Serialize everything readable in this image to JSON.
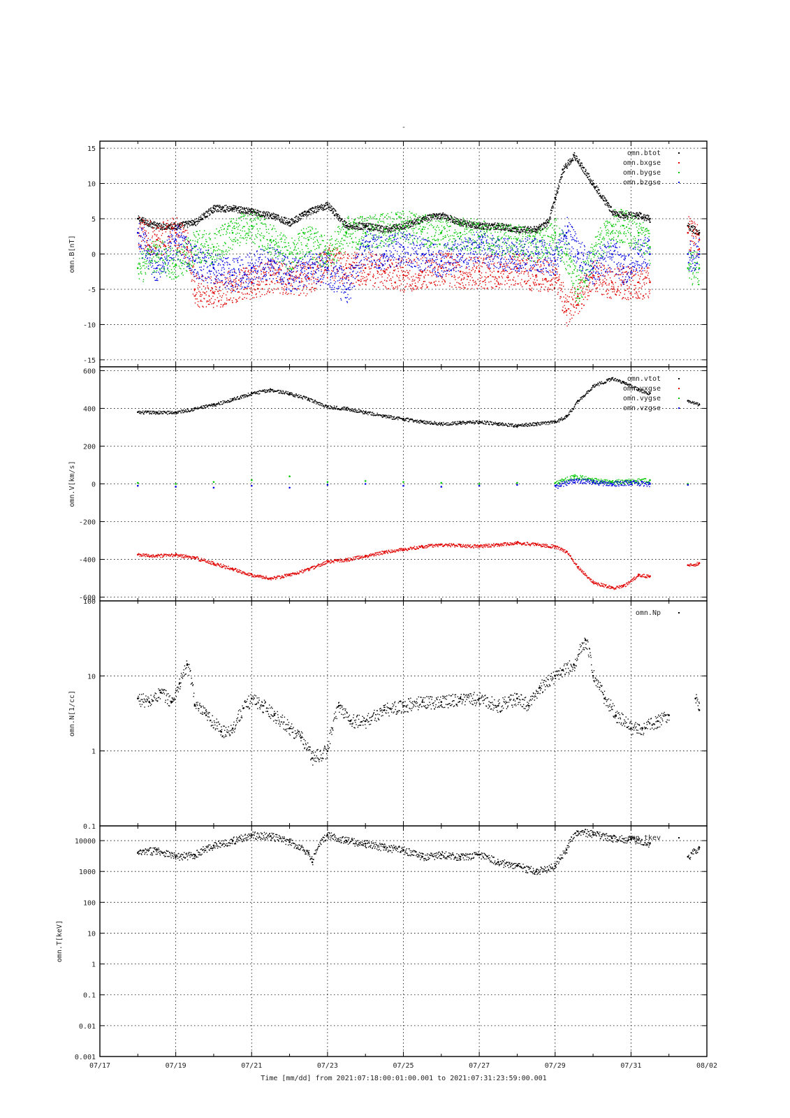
{
  "figure": {
    "title": "-",
    "x_axis_label": "Time [mm/dd]  from 2021:07:18:00:01:00.001  to  2021:07:31:23:59:00.001",
    "x_tick_labels": [
      "07/17",
      "07/19",
      "07/21",
      "07/23",
      "07/25",
      "07/27",
      "07/29",
      "07/31",
      "08/02"
    ]
  },
  "chart_data": [
    {
      "type": "scatter",
      "ylabel": "omn.B[nT]",
      "ylim": [
        -16,
        16
      ],
      "y_ticks": [
        -15,
        -10,
        -5,
        0,
        5,
        10,
        15
      ],
      "y_tick_labels": [
        "-15",
        "-10",
        "-5",
        "0",
        "5",
        "10",
        "15"
      ],
      "x_unit": "days since 07/17",
      "xlim": [
        0,
        16
      ],
      "grid": true,
      "legend_position": "top-right",
      "series": [
        {
          "name": "omn.btot",
          "color": "#000000",
          "x": [
            1,
            1.5,
            2,
            2.5,
            3,
            3.5,
            4,
            4.5,
            5,
            5.5,
            6,
            6.5,
            7,
            7.5,
            8,
            8.5,
            9,
            9.5,
            10,
            10.5,
            11,
            11.5,
            11.8,
            12,
            12.2,
            12.5,
            13,
            13.5,
            13.8,
            14.2,
            14.5,
            15.5,
            15.8
          ],
          "y": [
            5,
            4,
            4,
            4.5,
            6.5,
            6.5,
            6,
            5.5,
            4.5,
            6,
            7,
            4,
            4,
            3.5,
            4,
            5,
            5.5,
            4.5,
            4,
            4,
            3.5,
            3.5,
            4.5,
            8,
            12,
            14,
            10,
            6,
            5.5,
            5.5,
            5,
            4,
            3
          ]
        },
        {
          "name": "omn.bxgse",
          "color": "#e00000",
          "x": [
            1,
            1.5,
            2,
            2.3,
            2.5,
            3,
            3.5,
            4,
            4.5,
            5,
            5.5,
            6,
            6.5,
            7,
            7.5,
            8,
            8.5,
            9,
            9.5,
            10,
            10.5,
            11,
            11.5,
            12,
            12.3,
            12.6,
            13,
            13.5,
            13.8,
            14.2,
            14.5,
            15.5,
            15.8
          ],
          "y": [
            3,
            2,
            3,
            1,
            -5,
            -5.5,
            -4.5,
            -4,
            -3,
            -3.5,
            -3.5,
            -1,
            -2,
            -2,
            -2.5,
            -3,
            -2.5,
            -2,
            -2.5,
            -2.5,
            -2.5,
            -2,
            -3,
            -3,
            -8,
            -6,
            -3,
            -4,
            -4,
            -4,
            -4,
            3,
            2
          ]
        },
        {
          "name": "omn.bygse",
          "color": "#00c800",
          "x": [
            1,
            1.5,
            2,
            2.5,
            3,
            3.5,
            4,
            4.5,
            5,
            5.5,
            6,
            6.5,
            7,
            7.5,
            8,
            8.5,
            9,
            9.5,
            10,
            10.5,
            11,
            11.5,
            12,
            12.3,
            12.6,
            13,
            13.5,
            13.8,
            14.2,
            14.5,
            15.5,
            15.8
          ],
          "y": [
            -2,
            0,
            -1.5,
            1,
            1,
            3,
            4,
            2,
            0,
            2,
            0,
            3,
            3,
            3.5,
            4,
            3.5,
            3,
            3,
            2.5,
            2,
            2,
            1,
            3,
            0,
            -5,
            0,
            4,
            4,
            3,
            1,
            -2,
            -2
          ]
        },
        {
          "name": "omn.bzgse",
          "color": "#0000e0",
          "x": [
            1,
            1.5,
            2,
            2.5,
            3,
            3.5,
            4,
            4.5,
            5,
            5.5,
            6,
            6.5,
            7,
            7.5,
            8,
            8.5,
            9,
            9.5,
            10,
            10.5,
            11,
            11.5,
            12,
            12.3,
            12.6,
            13,
            13.5,
            13.8,
            14.2,
            14.5,
            15.5,
            15.8
          ],
          "y": [
            3,
            -2,
            2,
            -1,
            -2,
            -3,
            -2,
            -1,
            -3,
            -2,
            -2,
            -5,
            1,
            0,
            1,
            0,
            -1,
            0,
            1,
            0,
            0,
            0,
            -1,
            3,
            0,
            -2,
            0,
            -2,
            0,
            0,
            0,
            0
          ]
        }
      ]
    },
    {
      "type": "scatter",
      "ylabel": "omn.V[km/s]",
      "ylim": [
        -620,
        620
      ],
      "y_ticks": [
        -600,
        -400,
        -200,
        0,
        200,
        400,
        600
      ],
      "y_tick_labels": [
        "-600",
        "-400",
        "-200",
        "0",
        "200",
        "400",
        "600"
      ],
      "x_unit": "days since 07/17",
      "xlim": [
        0,
        16
      ],
      "grid": true,
      "legend_position": "top-right",
      "series": [
        {
          "name": "omn.vtot",
          "color": "#000000",
          "x": [
            1,
            1.5,
            2,
            2.5,
            3,
            3.5,
            4,
            4.5,
            5,
            5.5,
            6,
            6.5,
            7,
            7.5,
            8,
            8.5,
            9,
            9.5,
            10,
            10.5,
            11,
            11.5,
            12,
            12.3,
            12.6,
            13,
            13.5,
            13.8,
            14.2,
            14.5,
            15.5,
            15.8
          ],
          "y": [
            380,
            380,
            380,
            400,
            420,
            450,
            480,
            500,
            480,
            450,
            410,
            400,
            380,
            360,
            345,
            330,
            320,
            325,
            330,
            320,
            310,
            320,
            330,
            360,
            440,
            520,
            560,
            540,
            500,
            480,
            440,
            420
          ]
        },
        {
          "name": "omn.vxgse",
          "color": "#e00000",
          "x": [
            1,
            1.5,
            2,
            2.5,
            3,
            3.5,
            4,
            4.5,
            5,
            5.5,
            6,
            6.5,
            7,
            7.5,
            8,
            8.5,
            9,
            9.5,
            10,
            10.5,
            11,
            11.5,
            12,
            12.3,
            12.6,
            13,
            13.5,
            13.8,
            14.2,
            14.5,
            15.5,
            15.8
          ],
          "y": [
            -375,
            -380,
            -375,
            -390,
            -420,
            -450,
            -480,
            -500,
            -480,
            -450,
            -410,
            -400,
            -380,
            -360,
            -345,
            -330,
            -320,
            -325,
            -330,
            -320,
            -310,
            -320,
            -330,
            -360,
            -440,
            -520,
            -550,
            -540,
            -480,
            -490,
            -430,
            -420
          ]
        },
        {
          "name": "omn.vygse",
          "color": "#00c800",
          "x": [
            1,
            2,
            3,
            4,
            5,
            6,
            7,
            8,
            9,
            10,
            11,
            12,
            12.5,
            13,
            13.5,
            14,
            14.5,
            15.5
          ],
          "y": [
            5,
            0,
            10,
            20,
            40,
            10,
            15,
            10,
            5,
            0,
            5,
            5,
            40,
            20,
            10,
            15,
            20,
            0
          ]
        },
        {
          "name": "omn.vzgse",
          "color": "#0000e0",
          "x": [
            1,
            2,
            3,
            4,
            5,
            6,
            7,
            8,
            9,
            10,
            11,
            12,
            12.5,
            13,
            13.5,
            14,
            14.5,
            15.5
          ],
          "y": [
            -10,
            -15,
            -20,
            -10,
            -20,
            -5,
            0,
            -10,
            -15,
            -10,
            -5,
            -10,
            20,
            10,
            0,
            10,
            0,
            -5
          ]
        }
      ]
    },
    {
      "type": "scatter",
      "ylabel": "omn.N[1/cc]",
      "yscale": "log",
      "ylim": [
        0.1,
        100
      ],
      "y_ticks": [
        0.1,
        1,
        10,
        100
      ],
      "y_tick_labels": [
        "0.1",
        "1",
        "10",
        "100"
      ],
      "x_unit": "days since 07/17",
      "xlim": [
        0,
        16
      ],
      "grid": true,
      "legend_position": "top-right",
      "series": [
        {
          "name": "omn.Np",
          "color": "#000000",
          "x": [
            1,
            1.3,
            1.6,
            1.9,
            2.1,
            2.3,
            2.5,
            2.8,
            3.2,
            3.5,
            4,
            4.3,
            4.6,
            5,
            5.3,
            5.6,
            6,
            6.3,
            6.6,
            7,
            7.5,
            8,
            8.5,
            9,
            9.5,
            10,
            10.5,
            11,
            11.3,
            11.6,
            12,
            12.2,
            12.5,
            12.8,
            13,
            13.3,
            13.6,
            14,
            14.3,
            14.7,
            15,
            15.7,
            15.8
          ],
          "y": [
            5,
            4.5,
            6,
            4.5,
            8,
            14,
            4,
            3,
            1.8,
            2,
            5,
            4,
            3,
            2,
            1.5,
            0.8,
            1,
            4,
            2.5,
            2.5,
            3.5,
            4,
            4.5,
            4.5,
            5,
            5,
            4,
            5,
            4,
            7,
            10,
            12,
            14,
            30,
            10,
            5,
            3,
            2,
            2,
            2.5,
            3,
            5,
            3.5
          ]
        }
      ]
    },
    {
      "type": "scatter",
      "ylabel": "omn.T[keV]",
      "yscale": "log",
      "ylim": [
        0.001,
        30000
      ],
      "y_ticks": [
        0.001,
        0.01,
        0.1,
        1,
        10,
        100,
        1000,
        10000
      ],
      "y_tick_labels": [
        "0.001",
        "0.01",
        "0.1",
        "1",
        "10",
        "100",
        "1000",
        "10000"
      ],
      "x_unit": "days since 07/17",
      "xlim": [
        0,
        16
      ],
      "grid": true,
      "legend_position": "top-right",
      "series": [
        {
          "name": "omn.tkev",
          "color": "#000000",
          "x": [
            1,
            1.5,
            2,
            2.5,
            3,
            3.5,
            4,
            4.5,
            5,
            5.5,
            5.6,
            6,
            6.5,
            7,
            7.5,
            8,
            8.5,
            9,
            9.5,
            10,
            10.5,
            11,
            11.5,
            12,
            12.3,
            12.6,
            13,
            13.5,
            14,
            14.5,
            15.5,
            15.8
          ],
          "y": [
            4000,
            5000,
            3000,
            3500,
            7000,
            10000,
            15000,
            14000,
            9000,
            4000,
            2000,
            15000,
            10000,
            8000,
            6000,
            5000,
            3000,
            3500,
            3000,
            3500,
            2000,
            1500,
            1000,
            1500,
            5000,
            20000,
            16000,
            12000,
            11000,
            8000,
            3000,
            6000
          ]
        }
      ]
    }
  ]
}
